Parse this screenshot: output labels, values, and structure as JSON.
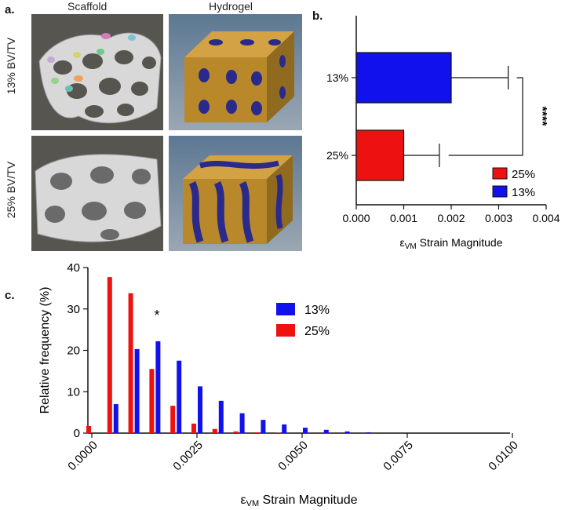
{
  "panel_a": {
    "letter": "a.",
    "columns": [
      "Scaffold",
      "Hydrogel"
    ],
    "rows": [
      "13% BV/TV",
      "25% BV/TV"
    ]
  },
  "panel_b": {
    "letter": "b.",
    "significance": "****"
  },
  "panel_c": {
    "letter": "c.",
    "annotation": "*"
  },
  "colors": {
    "series_13": "#1111ee",
    "series_25": "#ee1111",
    "scaffold_bg": "#55544f",
    "hydrogel_bg": "#7f8f9f",
    "hydrogel_fill": "#b8882a",
    "hydrogel_pore": "#2a2a8c"
  },
  "chart_data": [
    {
      "type": "bar",
      "orientation": "horizontal",
      "categories": [
        "13%",
        "25%"
      ],
      "values": [
        0.002,
        0.001
      ],
      "errors": [
        0.0012,
        0.00075
      ],
      "xlabel": "εVM Strain Magnitude",
      "xlim": [
        0.0,
        0.004
      ],
      "xticks": [
        "0.000",
        "0.001",
        "0.002",
        "0.003",
        "0.004"
      ],
      "legend": [
        "25%",
        "13%"
      ],
      "legend_position": "bottom-right"
    },
    {
      "type": "bar",
      "categories": [
        "0.0000",
        "0.0005",
        "0.0010",
        "0.0015",
        "0.0020",
        "0.0025",
        "0.0030",
        "0.0035",
        "0.0040",
        "0.0045",
        "0.0050",
        "0.0055",
        "0.0060",
        "0.0065"
      ],
      "series": [
        {
          "name": "13%",
          "values": [
            0,
            7.0,
            20.3,
            22.2,
            17.5,
            11.3,
            7.8,
            4.8,
            3.2,
            2.1,
            1.3,
            0.8,
            0.4,
            0.2
          ]
        },
        {
          "name": "25%",
          "values": [
            1.7,
            37.7,
            33.8,
            15.5,
            6.6,
            2.3,
            1.0,
            0.4,
            0.2,
            0.1,
            0,
            0,
            0,
            0
          ]
        }
      ],
      "xlabel": "εVM Strain Magnitude",
      "ylabel": "Relative frequency (%)",
      "ylim": [
        0,
        40
      ],
      "yticks": [
        "0",
        "10",
        "20",
        "30",
        "40"
      ],
      "xticks": [
        "0.0000",
        "0.0025",
        "0.0050",
        "0.0075",
        "0.0100"
      ],
      "legend": [
        "13%",
        "25%"
      ],
      "legend_position": "top-right"
    }
  ]
}
